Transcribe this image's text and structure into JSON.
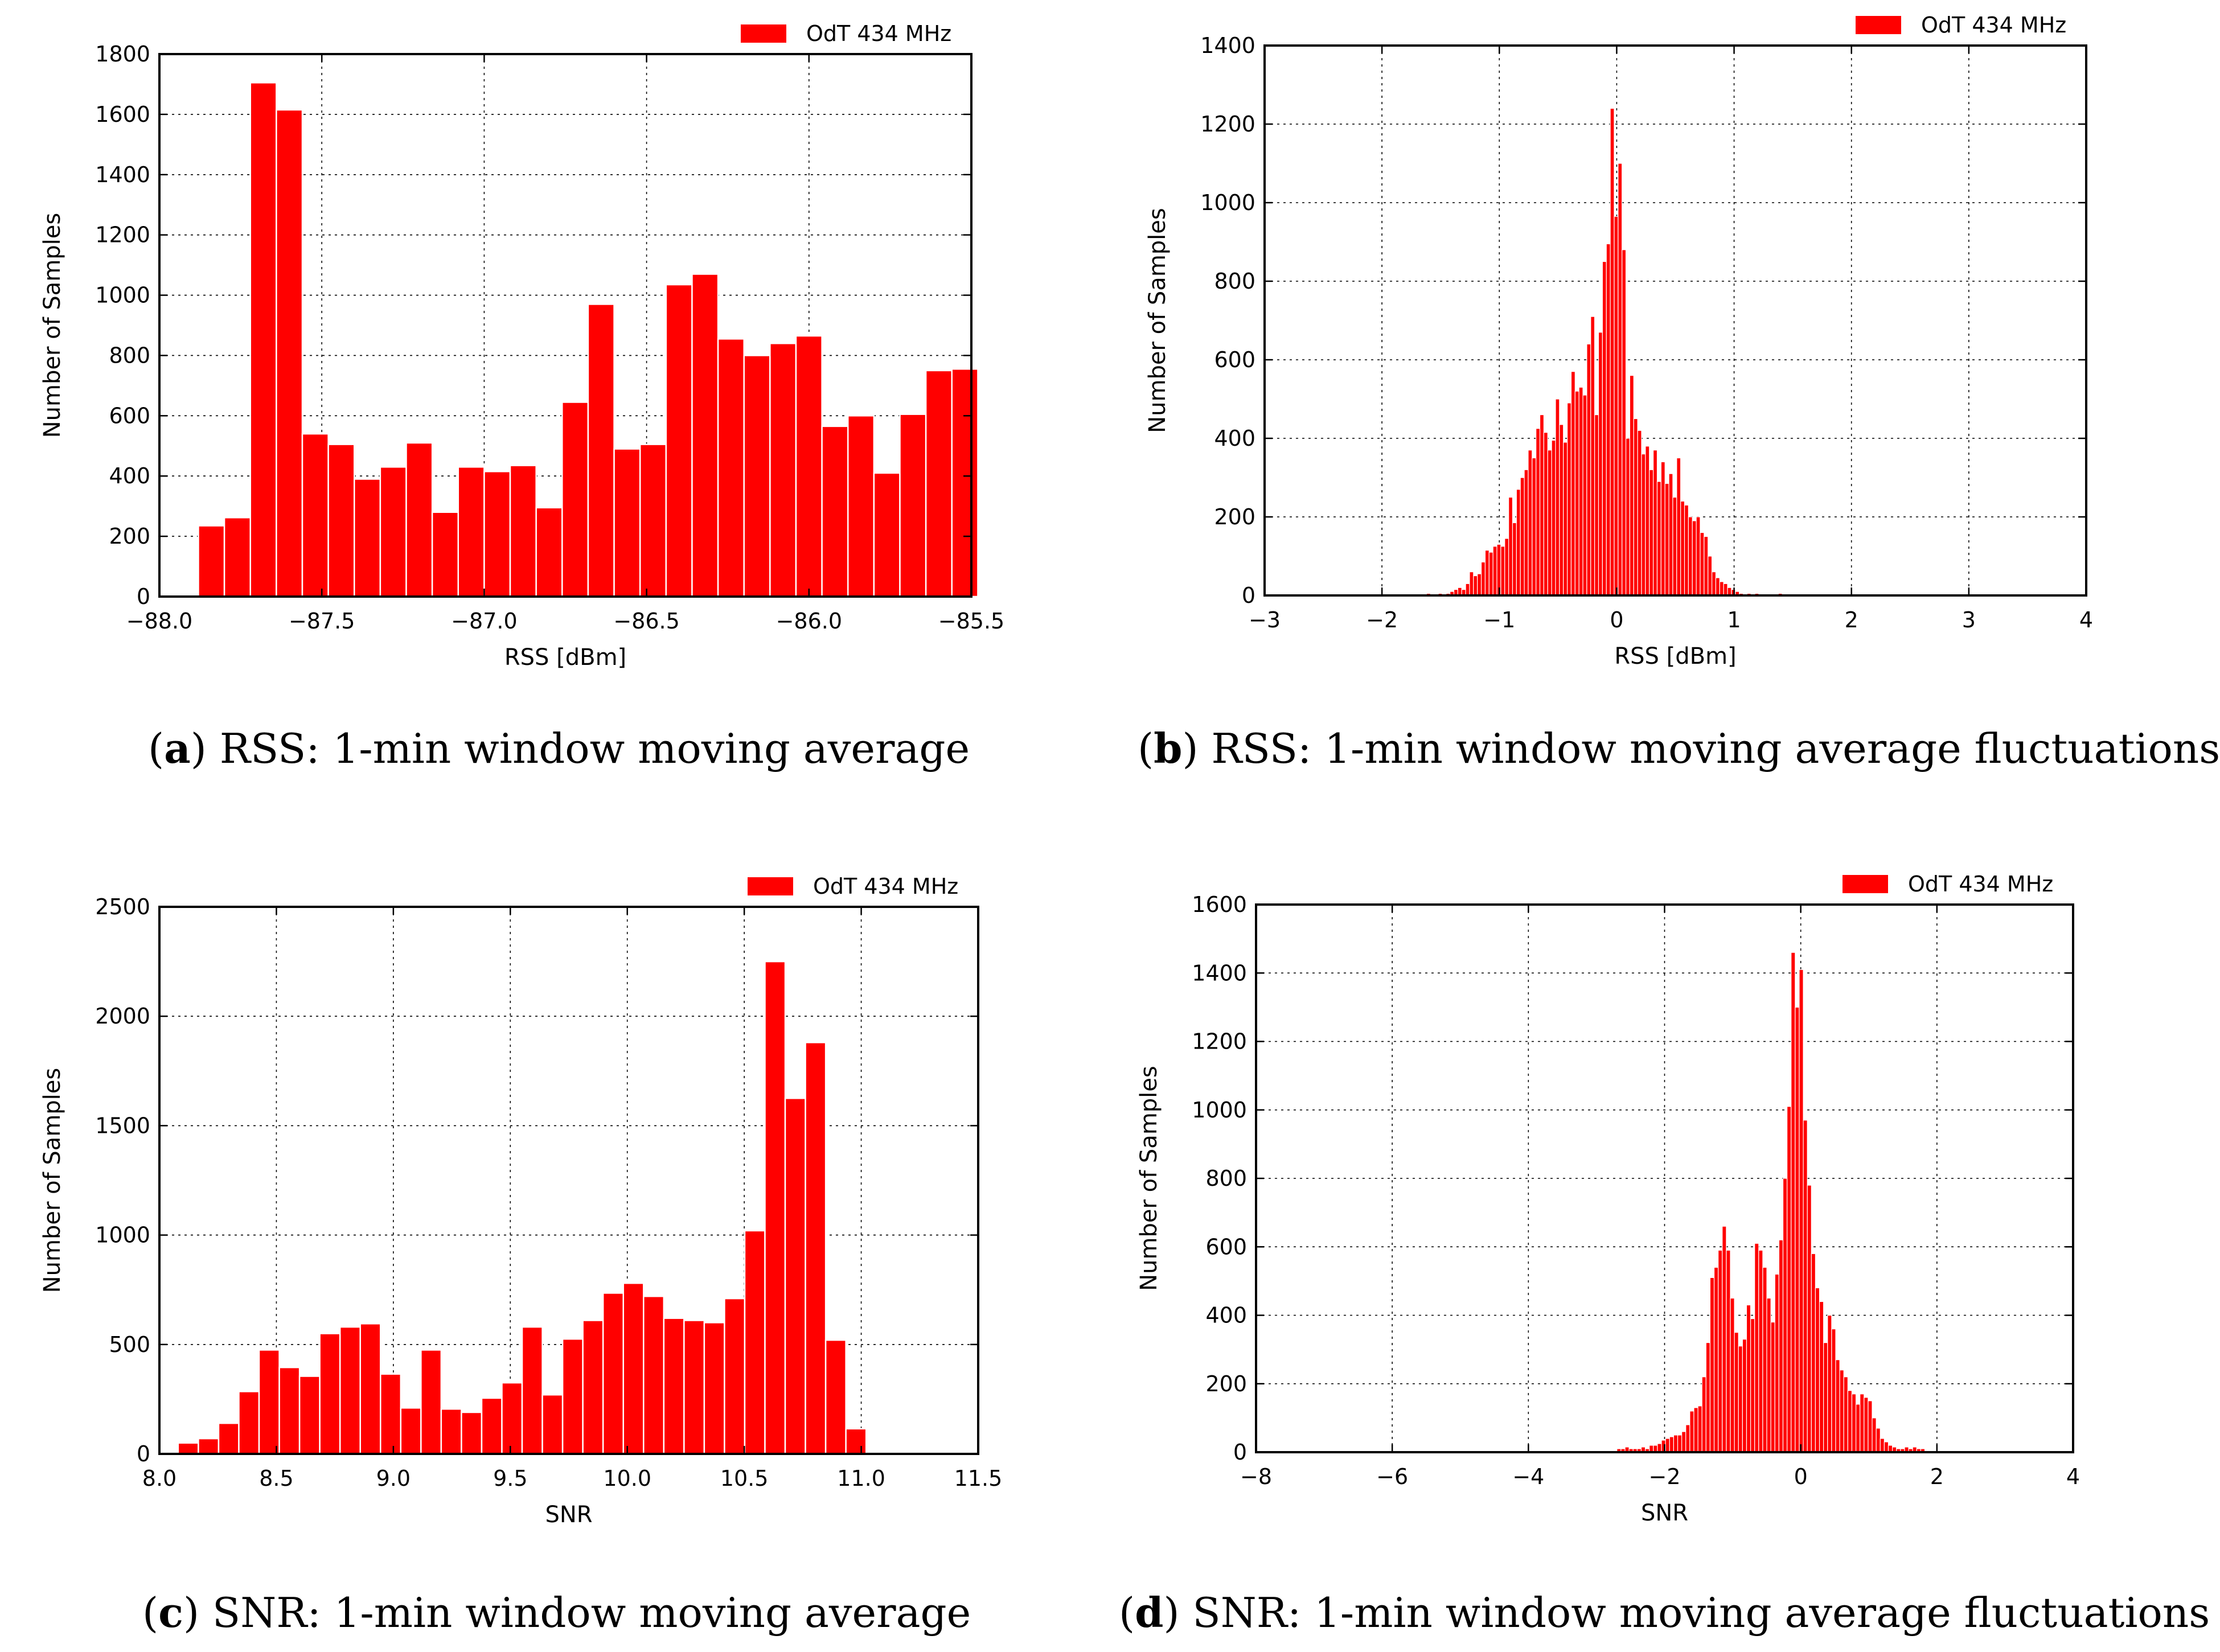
{
  "chart_data": [
    {
      "id": "a",
      "type": "bar",
      "xlabel": "RSS [dBm]",
      "ylabel": "Number of Samples",
      "xlim": [
        -88.0,
        -85.5
      ],
      "ylim": [
        0,
        1800
      ],
      "xticks": [
        -88.0,
        -87.5,
        -87.0,
        -86.5,
        -86.0,
        -85.5
      ],
      "xtick_labels": [
        "−88.0",
        "−87.5",
        "−87.0",
        "−86.5",
        "−86.0",
        "−85.5"
      ],
      "yticks": [
        0,
        200,
        400,
        600,
        800,
        1000,
        1200,
        1400,
        1600,
        1800
      ],
      "ytick_labels": [
        "0",
        "200",
        "400",
        "600",
        "800",
        "1000",
        "1200",
        "1400",
        "1600",
        "1800"
      ],
      "grid": true,
      "legend": "OdT 434 MHz",
      "legend_position": "top-right",
      "color": "#ff0000",
      "bin_start": -87.88,
      "bin_width": 0.08,
      "values": [
        235,
        262,
        1705,
        1615,
        540,
        505,
        390,
        430,
        510,
        280,
        430,
        415,
        435,
        295,
        645,
        970,
        490,
        505,
        1035,
        1070,
        855,
        800,
        840,
        865,
        565,
        600,
        410,
        605,
        750,
        755
      ],
      "caption_letter": "a",
      "caption_text": "RSS: 1-min window moving average"
    },
    {
      "id": "b",
      "type": "bar",
      "xlabel": "RSS [dBm]",
      "ylabel": "Number of Samples",
      "xlim": [
        -3,
        4
      ],
      "ylim": [
        0,
        1400
      ],
      "xticks": [
        -3,
        -2,
        -1,
        0,
        1,
        2,
        3,
        4
      ],
      "xtick_labels": [
        "−3",
        "−2",
        "−1",
        "0",
        "1",
        "2",
        "3",
        "4"
      ],
      "yticks": [
        0,
        200,
        400,
        600,
        800,
        1000,
        1200,
        1400
      ],
      "ytick_labels": [
        "0",
        "200",
        "400",
        "600",
        "800",
        "1000",
        "1200",
        "1400"
      ],
      "grid": true,
      "legend": "OdT 434 MHz",
      "legend_position": "top-right",
      "color": "#ff0000",
      "bin_start": -1.62,
      "bin_width": 0.0333,
      "values": [
        5,
        0,
        0,
        5,
        0,
        5,
        10,
        15,
        20,
        15,
        30,
        60,
        50,
        55,
        85,
        115,
        110,
        125,
        130,
        125,
        145,
        250,
        185,
        270,
        300,
        320,
        370,
        350,
        425,
        460,
        415,
        370,
        395,
        500,
        435,
        390,
        490,
        570,
        520,
        530,
        510,
        640,
        710,
        460,
        670,
        850,
        895,
        1240,
        965,
        1100,
        880,
        400,
        560,
        450,
        420,
        360,
        380,
        320,
        370,
        290,
        340,
        285,
        310,
        250,
        350,
        240,
        230,
        200,
        190,
        200,
        160,
        150,
        100,
        60,
        45,
        35,
        30,
        20,
        15,
        10,
        5,
        0,
        5,
        0,
        5,
        0,
        0,
        0,
        0,
        0,
        5,
        0
      ],
      "caption_letter": "b",
      "caption_text": "RSS: 1-min window moving average fluctuations"
    },
    {
      "id": "c",
      "type": "bar",
      "xlabel": "SNR",
      "ylabel": "Number of Samples",
      "xlim": [
        8.0,
        11.5
      ],
      "ylim": [
        0,
        2500
      ],
      "xticks": [
        8.0,
        8.5,
        9.0,
        9.5,
        10.0,
        10.5,
        11.0,
        11.5
      ],
      "xtick_labels": [
        "8.0",
        "8.5",
        "9.0",
        "9.5",
        "10.0",
        "10.5",
        "11.0",
        "11.5"
      ],
      "yticks": [
        0,
        500,
        1000,
        1500,
        2000,
        2500
      ],
      "ytick_labels": [
        "0",
        "500",
        "1000",
        "1500",
        "2000",
        "2500"
      ],
      "grid": true,
      "legend": "OdT 434 MHz",
      "legend_position": "top-right",
      "color": "#ff0000",
      "bin_start": 8.08,
      "bin_width": 0.0865,
      "values": [
        50,
        70,
        140,
        285,
        475,
        395,
        355,
        550,
        580,
        595,
        365,
        210,
        475,
        205,
        190,
        255,
        325,
        580,
        270,
        525,
        610,
        735,
        780,
        720,
        620,
        610,
        600,
        710,
        1020,
        2250,
        1625,
        1880,
        520,
        115
      ],
      "caption_letter": "c",
      "caption_text": "SNR: 1-min window moving average"
    },
    {
      "id": "d",
      "type": "bar",
      "xlabel": "SNR",
      "ylabel": "Number of Samples",
      "xlim": [
        -8,
        4
      ],
      "ylim": [
        0,
        1600
      ],
      "xticks": [
        -8,
        -6,
        -4,
        -2,
        0,
        2,
        4
      ],
      "xtick_labels": [
        "−8",
        "−6",
        "−4",
        "−2",
        "0",
        "2",
        "4"
      ],
      "yticks": [
        0,
        200,
        400,
        600,
        800,
        1000,
        1200,
        1400,
        1600
      ],
      "ytick_labels": [
        "0",
        "200",
        "400",
        "600",
        "800",
        "1000",
        "1200",
        "1400",
        "1600"
      ],
      "grid": true,
      "legend": "OdT 434 MHz",
      "legend_position": "top-right",
      "color": "#ff0000",
      "bin_start": -2.7,
      "bin_width": 0.0595,
      "values": [
        10,
        10,
        15,
        10,
        10,
        10,
        15,
        10,
        20,
        20,
        25,
        35,
        40,
        45,
        50,
        50,
        60,
        80,
        120,
        130,
        135,
        220,
        320,
        510,
        540,
        590,
        660,
        590,
        450,
        350,
        310,
        330,
        430,
        390,
        610,
        590,
        540,
        450,
        380,
        520,
        620,
        800,
        1010,
        1460,
        1300,
        1410,
        970,
        780,
        580,
        480,
        440,
        320,
        400,
        360,
        270,
        240,
        220,
        180,
        170,
        140,
        170,
        160,
        150,
        100,
        70,
        40,
        30,
        20,
        15,
        10,
        10,
        15,
        10,
        15,
        10,
        10
      ],
      "caption_letter": "d",
      "caption_text": "SNR: 1-min window moving average fluctuations"
    }
  ]
}
